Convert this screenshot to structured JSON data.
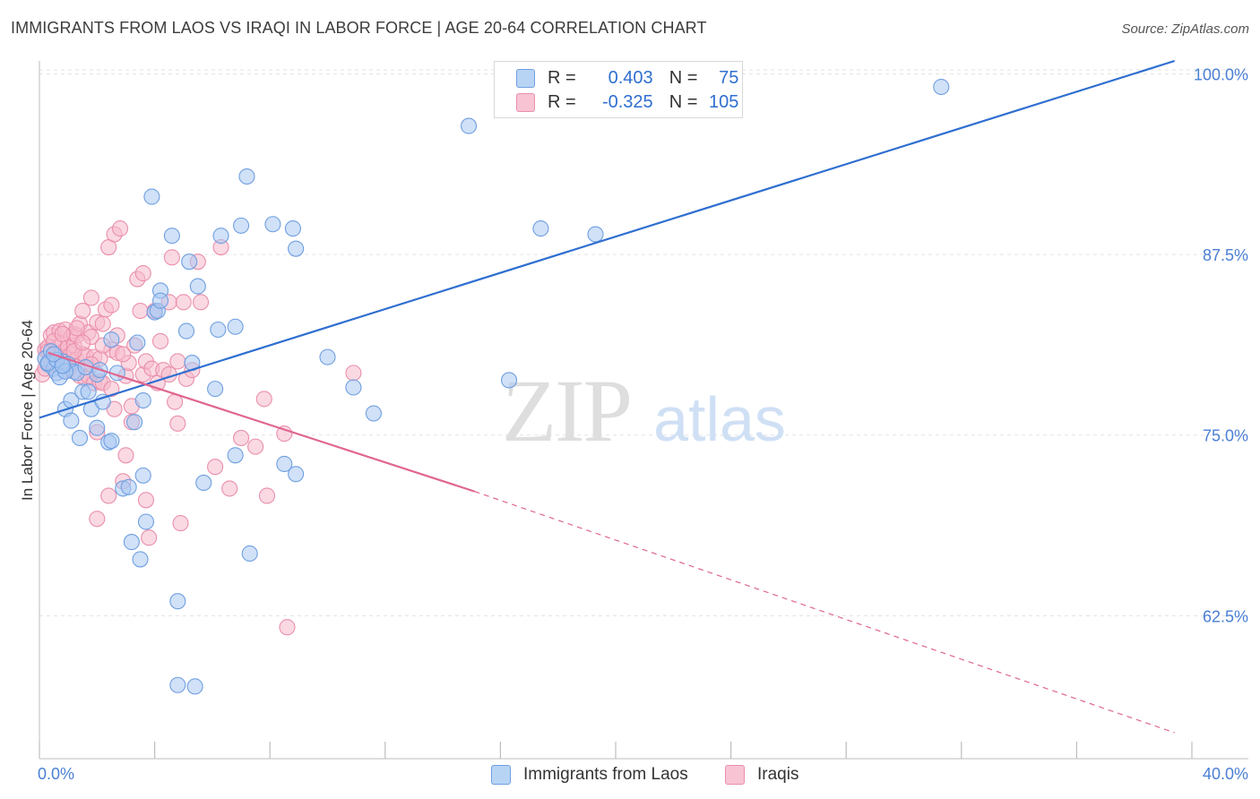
{
  "header": {
    "title": "IMMIGRANTS FROM LAOS VS IRAQI IN LABOR FORCE | AGE 20-64 CORRELATION CHART",
    "source": "Source: ZipAtlas.com"
  },
  "colors": {
    "blue_fill": "#a9c9f2",
    "blue_stroke": "#6f9fe0",
    "blue_line": "#2f6fd0",
    "pink_fill": "#f6b9cc",
    "pink_stroke": "#ea8fab",
    "pink_line": "#e0668f",
    "axis_text": "#4a7fd4",
    "grid": "#e3e3e3"
  },
  "legend": {
    "blue": {
      "r_label": "R =",
      "r_value": "0.403",
      "n_label": "N =",
      "n_value": "75"
    },
    "pink": {
      "r_label": "R =",
      "r_value": "-0.325",
      "n_label": "N =",
      "n_value": "105"
    }
  },
  "watermark": {
    "zip": "ZIP",
    "atlas": "atlas"
  },
  "chart_data": {
    "type": "scatter",
    "title": "IMMIGRANTS FROM LAOS VS IRAQI IN LABOR FORCE | AGE 20-64 CORRELATION CHART",
    "xlabel": "",
    "ylabel": "In Labor Force | Age 20-64",
    "xlim": [
      0,
      40
    ],
    "ylim": [
      52.6,
      100.9
    ],
    "x_tick_labels": [
      {
        "value": 0,
        "label": "0.0%"
      },
      {
        "value": 40,
        "label": "40.0%"
      }
    ],
    "y_tick_labels": [
      {
        "value": 100,
        "label": "100.0%"
      },
      {
        "value": 87.5,
        "label": "87.5%"
      },
      {
        "value": 75,
        "label": "75.0%"
      },
      {
        "value": 62.5,
        "label": "62.5%"
      }
    ],
    "grid": true,
    "legend_position": "top-center",
    "series": [
      {
        "name": "Immigrants from Laos",
        "color": "#a9c9f2",
        "trendline": {
          "x": [
            0,
            39.4
          ],
          "y": [
            76.2,
            100.9
          ],
          "style": "solid"
        },
        "points": [
          [
            0.2,
            80.3
          ],
          [
            0.3,
            79.9
          ],
          [
            0.4,
            80.8
          ],
          [
            0.5,
            79.6
          ],
          [
            0.6,
            79.3
          ],
          [
            0.7,
            79.0
          ],
          [
            0.8,
            80.1
          ],
          [
            0.9,
            76.8
          ],
          [
            1.0,
            79.9
          ],
          [
            1.1,
            77.4
          ],
          [
            1.2,
            79.4
          ],
          [
            1.3,
            79.3
          ],
          [
            1.4,
            74.8
          ],
          [
            1.5,
            78.0
          ],
          [
            1.7,
            78.0
          ],
          [
            1.8,
            76.8
          ],
          [
            2.0,
            79.2
          ],
          [
            2.0,
            75.5
          ],
          [
            2.2,
            77.3
          ],
          [
            2.4,
            74.5
          ],
          [
            2.5,
            74.6
          ],
          [
            2.5,
            81.6
          ],
          [
            2.7,
            79.3
          ],
          [
            2.9,
            71.3
          ],
          [
            3.1,
            71.4
          ],
          [
            3.2,
            67.6
          ],
          [
            3.3,
            75.9
          ],
          [
            3.4,
            81.4
          ],
          [
            3.5,
            66.4
          ],
          [
            3.6,
            72.2
          ],
          [
            3.6,
            77.4
          ],
          [
            3.7,
            69.0
          ],
          [
            3.9,
            91.5
          ],
          [
            4.0,
            83.5
          ],
          [
            4.1,
            83.6
          ],
          [
            4.2,
            85.0
          ],
          [
            4.2,
            84.3
          ],
          [
            4.6,
            88.8
          ],
          [
            4.8,
            63.5
          ],
          [
            4.8,
            57.7
          ],
          [
            5.1,
            82.2
          ],
          [
            5.2,
            87.0
          ],
          [
            5.3,
            80.0
          ],
          [
            5.5,
            85.3
          ],
          [
            5.4,
            57.6
          ],
          [
            5.7,
            71.7
          ],
          [
            6.1,
            78.2
          ],
          [
            6.2,
            82.3
          ],
          [
            6.3,
            88.8
          ],
          [
            6.8,
            73.6
          ],
          [
            6.8,
            82.5
          ],
          [
            7.0,
            89.5
          ],
          [
            7.2,
            92.9
          ],
          [
            7.3,
            66.8
          ],
          [
            8.1,
            89.6
          ],
          [
            8.5,
            73.0
          ],
          [
            8.8,
            89.3
          ],
          [
            8.9,
            87.9
          ],
          [
            8.9,
            72.3
          ],
          [
            10.0,
            80.4
          ],
          [
            10.9,
            78.3
          ],
          [
            11.6,
            76.5
          ],
          [
            14.9,
            96.4
          ],
          [
            16.3,
            78.8
          ],
          [
            17.4,
            89.3
          ],
          [
            19.3,
            88.9
          ],
          [
            31.3,
            99.1
          ],
          [
            0.3,
            80.0
          ],
          [
            0.6,
            80.2
          ],
          [
            0.9,
            79.4
          ],
          [
            1.1,
            76.0
          ],
          [
            1.6,
            79.7
          ],
          [
            2.1,
            79.5
          ],
          [
            0.5,
            80.6
          ],
          [
            0.8,
            79.8
          ]
        ]
      },
      {
        "name": "Iraqis",
        "color": "#f6b9cc",
        "trendline": {
          "x": [
            0.3,
            15.1
          ],
          "y": [
            80.7,
            71.1
          ],
          "style": "solid",
          "dashed_extension": {
            "x": [
              15.1,
              39.4
            ],
            "y": [
              71.1,
              54.4
            ]
          }
        },
        "points": [
          [
            0.1,
            79.2
          ],
          [
            0.2,
            79.6
          ],
          [
            0.2,
            80.9
          ],
          [
            0.3,
            81.1
          ],
          [
            0.4,
            80.1
          ],
          [
            0.4,
            81.9
          ],
          [
            0.5,
            80.4
          ],
          [
            0.5,
            82.1
          ],
          [
            0.6,
            80.4
          ],
          [
            0.6,
            81.0
          ],
          [
            0.7,
            82.2
          ],
          [
            0.7,
            80.5
          ],
          [
            0.8,
            80.8
          ],
          [
            0.8,
            81.4
          ],
          [
            0.9,
            82.3
          ],
          [
            1.0,
            80.0
          ],
          [
            1.0,
            81.1
          ],
          [
            1.1,
            81.8
          ],
          [
            1.1,
            80.6
          ],
          [
            1.2,
            81.2
          ],
          [
            1.2,
            82.0
          ],
          [
            1.3,
            80.2
          ],
          [
            1.3,
            81.9
          ],
          [
            1.4,
            82.7
          ],
          [
            1.4,
            79.1
          ],
          [
            1.5,
            80.6
          ],
          [
            1.5,
            83.6
          ],
          [
            1.6,
            78.9
          ],
          [
            1.6,
            80.5
          ],
          [
            1.7,
            82.1
          ],
          [
            1.7,
            79.1
          ],
          [
            1.8,
            81.8
          ],
          [
            1.8,
            84.5
          ],
          [
            1.9,
            80.4
          ],
          [
            1.9,
            78.6
          ],
          [
            2.0,
            82.8
          ],
          [
            2.0,
            69.2
          ],
          [
            2.1,
            80.3
          ],
          [
            2.1,
            78.7
          ],
          [
            2.2,
            78.6
          ],
          [
            2.2,
            82.7
          ],
          [
            2.3,
            83.7
          ],
          [
            2.4,
            88.0
          ],
          [
            2.4,
            70.8
          ],
          [
            2.5,
            84.0
          ],
          [
            2.5,
            80.9
          ],
          [
            2.6,
            88.9
          ],
          [
            2.6,
            76.8
          ],
          [
            2.7,
            81.9
          ],
          [
            2.7,
            80.7
          ],
          [
            2.8,
            89.3
          ],
          [
            2.9,
            71.8
          ],
          [
            3.0,
            79.1
          ],
          [
            3.0,
            73.6
          ],
          [
            3.1,
            80.0
          ],
          [
            3.2,
            75.9
          ],
          [
            3.3,
            81.2
          ],
          [
            3.4,
            85.8
          ],
          [
            3.5,
            83.6
          ],
          [
            3.6,
            86.2
          ],
          [
            3.6,
            79.2
          ],
          [
            3.7,
            80.1
          ],
          [
            3.7,
            70.5
          ],
          [
            3.8,
            67.9
          ],
          [
            3.9,
            79.6
          ],
          [
            4.0,
            83.6
          ],
          [
            4.1,
            78.6
          ],
          [
            4.2,
            81.5
          ],
          [
            4.3,
            79.5
          ],
          [
            4.5,
            79.2
          ],
          [
            4.5,
            84.2
          ],
          [
            4.6,
            87.3
          ],
          [
            4.7,
            77.3
          ],
          [
            4.8,
            80.1
          ],
          [
            4.8,
            75.8
          ],
          [
            4.9,
            68.9
          ],
          [
            5.0,
            84.2
          ],
          [
            5.1,
            78.9
          ],
          [
            5.3,
            79.5
          ],
          [
            5.5,
            87.0
          ],
          [
            5.6,
            84.2
          ],
          [
            6.1,
            72.8
          ],
          [
            6.3,
            88.0
          ],
          [
            6.6,
            71.3
          ],
          [
            7.0,
            74.8
          ],
          [
            7.5,
            74.2
          ],
          [
            7.8,
            77.5
          ],
          [
            7.9,
            70.8
          ],
          [
            8.5,
            75.1
          ],
          [
            8.6,
            61.7
          ],
          [
            10.9,
            79.3
          ],
          [
            0.3,
            80.8
          ],
          [
            0.5,
            81.5
          ],
          [
            0.8,
            82.0
          ],
          [
            1.0,
            79.5
          ],
          [
            1.2,
            80.8
          ],
          [
            1.5,
            81.4
          ],
          [
            1.8,
            79.9
          ],
          [
            2.2,
            81.2
          ],
          [
            2.5,
            78.2
          ],
          [
            2.9,
            80.6
          ],
          [
            3.2,
            77.0
          ],
          [
            0.6,
            79.9
          ],
          [
            1.3,
            82.4
          ],
          [
            2.0,
            75.2
          ]
        ]
      }
    ]
  },
  "bottom_legend": [
    {
      "label": "Immigrants from Laos"
    },
    {
      "label": "Iraqis"
    }
  ]
}
